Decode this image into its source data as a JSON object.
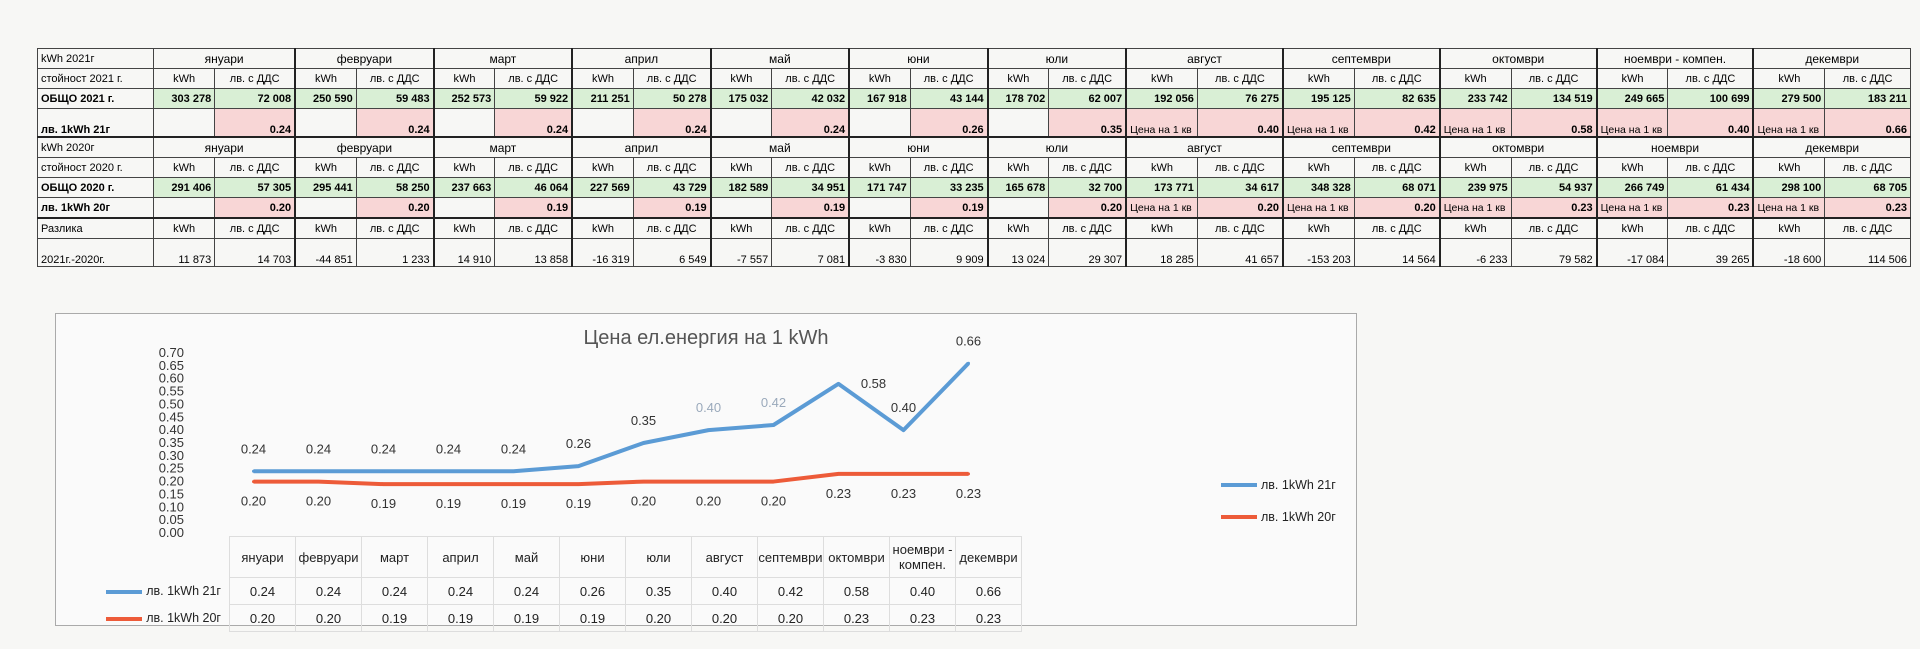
{
  "months": [
    "януари",
    "февруари",
    "март",
    "април",
    "май",
    "юни",
    "юли",
    "август",
    "септември",
    "октомври",
    "ноември - компен.",
    "декември"
  ],
  "months_2020": [
    "януари",
    "февруари",
    "март",
    "април",
    "май",
    "юни",
    "юли",
    "август",
    "септември",
    "октомври",
    "ноември",
    "декември"
  ],
  "unit_kwh": "kWh",
  "unit_lv": "лв. с ДДС",
  "price_note": "Цена на 1 кв",
  "year2021": {
    "header": "kWh 2021г",
    "value_row_label": "стойност 2021 г.",
    "total_label": "ОБЩО 2021 г.",
    "price_label": "лв. 1kWh 21г",
    "kwh": [
      "303 278",
      "250 590",
      "252 573",
      "211 251",
      "175 032",
      "167 918",
      "178 702",
      "192 056",
      "195 125",
      "233 742",
      "249 665",
      "279 500"
    ],
    "lv": [
      "72 008",
      "59 483",
      "59 922",
      "50 278",
      "42 032",
      "43 144",
      "62 007",
      "76 275",
      "82 635",
      "134 519",
      "100 699",
      "183 211"
    ],
    "price": [
      "0.24",
      "0.24",
      "0.24",
      "0.24",
      "0.24",
      "0.26",
      "0.35",
      "0.40",
      "0.42",
      "0.58",
      "0.40",
      "0.66"
    ]
  },
  "year2020": {
    "header": "kWh 2020г",
    "value_row_label": "стойност 2020 г.",
    "total_label": "ОБЩО 2020 г.",
    "price_label": "лв. 1kWh 20г",
    "kwh": [
      "291 406",
      "295 441",
      "237 663",
      "227 569",
      "182 589",
      "171 747",
      "165 678",
      "173 771",
      "348 328",
      "239 975",
      "266 749",
      "298 100"
    ],
    "lv": [
      "57 305",
      "58 250",
      "46 064",
      "43 729",
      "34 951",
      "33 235",
      "32 700",
      "34 617",
      "68 071",
      "54 937",
      "61 434",
      "68 705"
    ],
    "price": [
      "0.20",
      "0.20",
      "0.19",
      "0.19",
      "0.19",
      "0.19",
      "0.20",
      "0.20",
      "0.20",
      "0.23",
      "0.23",
      "0.23"
    ]
  },
  "difference": {
    "label": "Разлика",
    "period_label": "2021г.-2020г.",
    "kwh": [
      "11 873",
      "-44 851",
      "14 910",
      "-16 319",
      "-7 557",
      "-3 830",
      "13 024",
      "18 285",
      "-153 203",
      "-6 233",
      "-17 084",
      "-18 600"
    ],
    "lv": [
      "14 703",
      "1 233",
      "13 858",
      "6 549",
      "7 081",
      "9 909",
      "29 307",
      "41 657",
      "14 564",
      "79 582",
      "39 265",
      "114 506"
    ]
  },
  "colors": {
    "green": "#d9efd5",
    "pink": "#f8d6d6",
    "series_2021": "#5b9bd5",
    "series_2020": "#ed5b39"
  },
  "chart_data": {
    "type": "line",
    "title": "Цена ел.енергия на 1 kWh",
    "categories": [
      "януари",
      "февруари",
      "март",
      "април",
      "май",
      "юни",
      "юли",
      "август",
      "септември",
      "октомври",
      "ноември - компен.",
      "декември"
    ],
    "series": [
      {
        "name": "лв. 1kWh 21г",
        "values": [
          0.24,
          0.24,
          0.24,
          0.24,
          0.24,
          0.26,
          0.35,
          0.4,
          0.42,
          0.58,
          0.4,
          0.66
        ],
        "color": "#5b9bd5"
      },
      {
        "name": "лв. 1kWh 20г",
        "values": [
          0.2,
          0.2,
          0.19,
          0.19,
          0.19,
          0.19,
          0.2,
          0.2,
          0.2,
          0.23,
          0.23,
          0.23
        ],
        "color": "#ed5b39"
      }
    ],
    "ylim": [
      0,
      0.7
    ],
    "yticks": [
      "0.00",
      "0.05",
      "0.10",
      "0.15",
      "0.20",
      "0.25",
      "0.30",
      "0.35",
      "0.40",
      "0.45",
      "0.50",
      "0.55",
      "0.60",
      "0.65",
      "0.70"
    ],
    "legend": "right",
    "data_table": true
  }
}
